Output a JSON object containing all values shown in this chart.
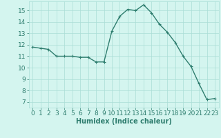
{
  "x": [
    0,
    1,
    2,
    3,
    4,
    5,
    6,
    7,
    8,
    9,
    10,
    11,
    12,
    13,
    14,
    15,
    16,
    17,
    18,
    19,
    20,
    21,
    22,
    23
  ],
  "y": [
    11.8,
    11.7,
    11.6,
    11.0,
    11.0,
    11.0,
    10.9,
    10.9,
    10.5,
    10.5,
    13.2,
    14.5,
    15.1,
    15.0,
    15.5,
    14.8,
    13.8,
    13.1,
    12.2,
    11.0,
    10.1,
    8.6,
    7.2,
    7.3
  ],
  "line_color": "#2e7d6e",
  "marker": "+",
  "marker_size": 3,
  "marker_lw": 0.8,
  "bg_color": "#d4f5ef",
  "grid_color": "#aaddd6",
  "xlabel": "Humidex (Indice chaleur)",
  "xlim": [
    -0.5,
    23.5
  ],
  "ylim": [
    6.5,
    15.8
  ],
  "yticks": [
    7,
    8,
    9,
    10,
    11,
    12,
    13,
    14,
    15
  ],
  "xticks": [
    0,
    1,
    2,
    3,
    4,
    5,
    6,
    7,
    8,
    9,
    10,
    11,
    12,
    13,
    14,
    15,
    16,
    17,
    18,
    19,
    20,
    21,
    22,
    23
  ],
  "xtick_labels": [
    "0",
    "1",
    "2",
    "3",
    "4",
    "5",
    "6",
    "7",
    "8",
    "9",
    "10",
    "11",
    "12",
    "13",
    "14",
    "15",
    "16",
    "17",
    "18",
    "19",
    "20",
    "21",
    "22",
    "23"
  ],
  "tick_color": "#2e7d6e",
  "label_color": "#2e7d6e",
  "line_width": 1.0,
  "xlabel_fontsize": 7,
  "tick_fontsize": 6.5
}
